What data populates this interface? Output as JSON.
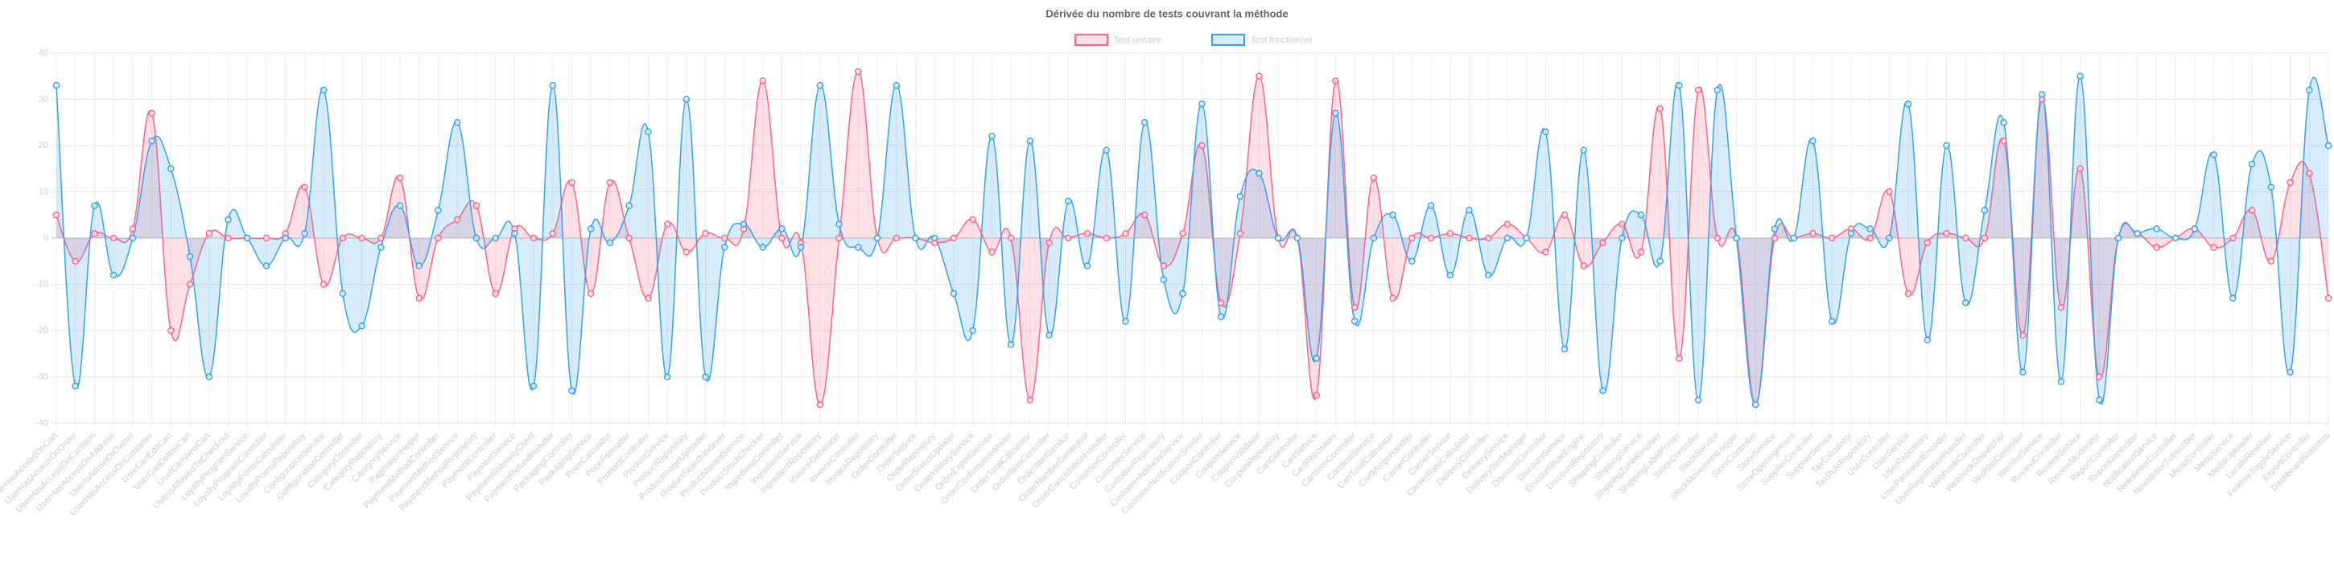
{
  "chart_data": {
    "type": "line",
    "title": "Dérivée du nombre de tests couvrant la méthode",
    "categories": [
      "UserHasAccessOnCart",
      "UserHasAccessOnOrder",
      "UserHasAccessOnCartItem",
      "UserHasAccessOnAddress",
      "UserIsAdminOrOwner",
      "UserHasAccessOnCustomer",
      "UserCanEditCart",
      "UserCanDeleteCart",
      "UserCanViewCart",
      "UserIsAllowedToCheckout",
      "LoyaltyProgramService",
      "LoyaltyProgramController",
      "LoyaltyPointsCalculator",
      "LoyaltyPointsRepository",
      "ConfigurationService",
      "ConfigurationController",
      "CategoryController",
      "CategoryRepository",
      "CategoryService",
      "PaginationHelper",
      "PaymentMethodController",
      "PaymentMethodService",
      "PaymentMethodRepository",
      "PaymentController",
      "PaymentService",
      "PaymentGatewayClient",
      "PaymentRefundHandler",
      "PackagingController",
      "PackagingService",
      "PriceCalculator",
      "PriceFormatter",
      "ProductController",
      "ProductService",
      "ProductRepository",
      "ProductImageUploader",
      "ProductSearchIndexer",
      "ProductVariantService",
      "ProductStockChecker",
      "IngredientController",
      "IngredientService",
      "IngredientRepository",
      "InvoiceGenerator",
      "InvoiceController",
      "InvoiceRepository",
      "OrderController",
      "OrderService",
      "OrderRepository",
      "OrderStatusUpdater",
      "OrderHistoryService",
      "OrderExportService",
      "OrderConfirmationMailer",
      "OrderTotalCalculator",
      "OrderItemController",
      "OrderItemService",
      "OrderNumberGenerator",
      "OrderCancellationHandler",
      "CustomerController",
      "CustomerService",
      "CustomerRepository",
      "CustomerAddressService",
      "CustomerNotificationSender",
      "CouponController",
      "CouponService",
      "CouponValidator",
      "CouponRepository",
      "CartController",
      "CartService",
      "CartRepository",
      "CartItemController",
      "CartItemService",
      "CartTotalCalculator",
      "CartMergeHandler",
      "CarrierController",
      "CarrierService",
      "CarrierRateCalculator",
      "DeliveryController",
      "DeliveryService",
      "DeliverySlotManager",
      "DiscountController",
      "DiscountService",
      "DiscountRuleEngine",
      "DiscountRepository",
      "ShippingController",
      "ShippingService",
      "ShippingZoneResolver",
      "ShippingLabelPrinter",
      "StockController",
      "StockService",
      "StockMovementLogger",
      "StoreController",
      "StoreService",
      "StoreOpeningHours",
      "SupplierController",
      "SupplierService",
      "TaxCalculator",
      "TaxRuleRepository",
      "UserController",
      "UserService",
      "UserRepository",
      "UserPasswordEncoder",
      "UserRegistrationHandler",
      "WebhookController",
      "WebhookDispatcher",
      "WishlistController",
      "WishlistService",
      "ReviewController",
      "ReviewService",
      "ReviewModerator",
      "ReportController",
      "ReportGenerator",
      "NotificationService",
      "NewsletterController",
      "NewsletterSubscriber",
      "MenuController",
      "MenuService",
      "MediaUploader",
      "LocaleResolver",
      "FeatureToggleService",
      "ExportController",
      "DashboardStatistics"
    ],
    "series": [
      {
        "name": "Test unitaire",
        "color": "#ff6384",
        "values": [
          5,
          -5,
          1,
          0,
          2,
          27,
          -20,
          -10,
          1,
          0,
          0,
          0,
          1,
          11,
          -10,
          0,
          0,
          0,
          13,
          -13,
          0,
          4,
          7,
          -12,
          2,
          0,
          1,
          12,
          -12,
          12,
          0,
          -13,
          3,
          -3,
          1,
          0,
          2,
          34,
          0,
          -1,
          -36,
          0,
          36,
          0,
          0,
          0,
          -1,
          0,
          4,
          -3,
          0,
          -35,
          -1,
          0,
          1,
          0,
          1,
          5,
          -6,
          1,
          20,
          -14,
          1,
          35,
          0,
          0,
          -34,
          34,
          -15,
          13,
          -13,
          0,
          0,
          1,
          0,
          0,
          3,
          0,
          -3,
          5,
          -6,
          -1,
          3,
          -3,
          28,
          -26,
          32,
          0,
          0,
          -36,
          0,
          0,
          1,
          0,
          2,
          0,
          10,
          -12,
          -1,
          1,
          0,
          0,
          21,
          -21,
          30,
          -15,
          15,
          -30,
          0,
          1,
          -2,
          0,
          2,
          -2,
          0,
          6,
          -5,
          12,
          14,
          -13
        ]
      },
      {
        "name": "Test fonctionnel",
        "color": "#36a2eb",
        "values": [
          33,
          -32,
          7,
          -8,
          0,
          21,
          15,
          -4,
          -30,
          4,
          0,
          -6,
          0,
          1,
          32,
          -12,
          -19,
          -2,
          7,
          -6,
          6,
          25,
          0,
          0,
          1,
          -32,
          33,
          -33,
          2,
          -1,
          7,
          23,
          -30,
          30,
          -30,
          -2,
          3,
          -2,
          2,
          -2,
          33,
          3,
          -2,
          0,
          33,
          0,
          0,
          -12,
          -20,
          22,
          -23,
          21,
          -21,
          8,
          -6,
          19,
          -18,
          25,
          -9,
          -12,
          29,
          -17,
          9,
          14,
          0,
          0,
          -26,
          27,
          -18,
          0,
          5,
          -5,
          7,
          -8,
          6,
          -8,
          0,
          0,
          23,
          -24,
          19,
          -33,
          0,
          5,
          -5,
          33,
          -35,
          32,
          0,
          -36,
          2,
          0,
          21,
          -18,
          1,
          2,
          0,
          29,
          -22,
          20,
          -14,
          6,
          25,
          -29,
          31,
          -31,
          35,
          -35,
          0,
          1,
          2,
          0,
          2,
          18,
          -13,
          16,
          11,
          -29,
          32,
          20
        ]
      }
    ],
    "ylim": [
      -40,
      40
    ],
    "yticks": [
      -40,
      -30,
      -20,
      -10,
      0,
      10,
      20,
      30,
      40
    ],
    "grid": true
  }
}
